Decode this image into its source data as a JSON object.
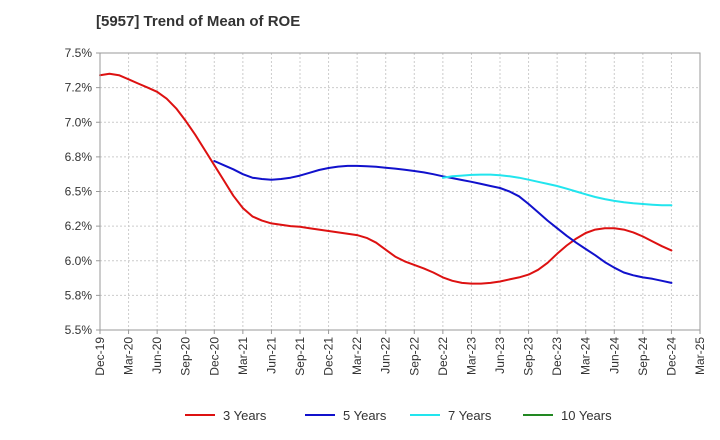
{
  "chart_data": {
    "type": "line",
    "title": "[5957]  Trend of Mean of ROE",
    "xlabel": "",
    "ylabel": "",
    "x_ticks": [
      "Dec-19",
      "Mar-20",
      "Jun-20",
      "Sep-20",
      "Dec-20",
      "Mar-21",
      "Jun-21",
      "Sep-21",
      "Dec-21",
      "Mar-22",
      "Jun-22",
      "Sep-22",
      "Dec-22",
      "Mar-23",
      "Jun-23",
      "Sep-23",
      "Dec-23",
      "Mar-24",
      "Jun-24",
      "Sep-24",
      "Dec-24",
      "Mar-25"
    ],
    "y_ticks": [
      "5.5%",
      "5.8%",
      "6.0%",
      "6.2%",
      "6.5%",
      "6.8%",
      "7.0%",
      "7.2%",
      "7.5%"
    ],
    "y_tick_values": [
      5.5,
      5.75,
      6.0,
      6.25,
      6.5,
      6.75,
      7.0,
      7.25,
      7.5
    ],
    "ylim": [
      5.5,
      7.5
    ],
    "grid": true,
    "legend_position": "bottom",
    "series": [
      {
        "name": "3 Years",
        "color": "#dd1111",
        "points": [
          [
            "Dec-19",
            7.34
          ],
          [
            "Jan-20",
            7.35
          ],
          [
            "Feb-20",
            7.34
          ],
          [
            "Mar-20",
            7.31
          ],
          [
            "Apr-20",
            7.28
          ],
          [
            "May-20",
            7.25
          ],
          [
            "Jun-20",
            7.22
          ],
          [
            "Jul-20",
            7.17
          ],
          [
            "Aug-20",
            7.1
          ],
          [
            "Sep-20",
            7.01
          ],
          [
            "Oct-20",
            6.91
          ],
          [
            "Nov-20",
            6.8
          ],
          [
            "Dec-20",
            6.69
          ],
          [
            "Jan-21",
            6.58
          ],
          [
            "Feb-21",
            6.47
          ],
          [
            "Mar-21",
            6.38
          ],
          [
            "Apr-21",
            6.32
          ],
          [
            "May-21",
            6.29
          ],
          [
            "Jun-21",
            6.27
          ],
          [
            "Jul-21",
            6.26
          ],
          [
            "Aug-21",
            6.25
          ],
          [
            "Sep-21",
            6.245
          ],
          [
            "Oct-21",
            6.235
          ],
          [
            "Nov-21",
            6.225
          ],
          [
            "Dec-21",
            6.215
          ],
          [
            "Jan-22",
            6.205
          ],
          [
            "Feb-22",
            6.195
          ],
          [
            "Mar-22",
            6.185
          ],
          [
            "Apr-22",
            6.165
          ],
          [
            "May-22",
            6.13
          ],
          [
            "Jun-22",
            6.08
          ],
          [
            "Jul-22",
            6.03
          ],
          [
            "Aug-22",
            5.995
          ],
          [
            "Sep-22",
            5.97
          ],
          [
            "Oct-22",
            5.945
          ],
          [
            "Nov-22",
            5.915
          ],
          [
            "Dec-22",
            5.88
          ],
          [
            "Jan-23",
            5.855
          ],
          [
            "Feb-23",
            5.84
          ],
          [
            "Mar-23",
            5.835
          ],
          [
            "Apr-23",
            5.835
          ],
          [
            "May-23",
            5.84
          ],
          [
            "Jun-23",
            5.85
          ],
          [
            "Jul-23",
            5.865
          ],
          [
            "Aug-23",
            5.88
          ],
          [
            "Sep-23",
            5.9
          ],
          [
            "Oct-23",
            5.935
          ],
          [
            "Nov-23",
            5.985
          ],
          [
            "Dec-23",
            6.05
          ],
          [
            "Jan-24",
            6.11
          ],
          [
            "Feb-24",
            6.16
          ],
          [
            "Mar-24",
            6.2
          ],
          [
            "Apr-24",
            6.225
          ],
          [
            "May-24",
            6.235
          ],
          [
            "Jun-24",
            6.235
          ],
          [
            "Jul-24",
            6.225
          ],
          [
            "Aug-24",
            6.205
          ],
          [
            "Sep-24",
            6.175
          ],
          [
            "Oct-24",
            6.14
          ],
          [
            "Nov-24",
            6.105
          ],
          [
            "Dec-24",
            6.075
          ]
        ]
      },
      {
        "name": "5 Years",
        "color": "#1111cc",
        "points": [
          [
            "Dec-20",
            6.72
          ],
          [
            "Jan-21",
            6.69
          ],
          [
            "Feb-21",
            6.66
          ],
          [
            "Mar-21",
            6.625
          ],
          [
            "Apr-21",
            6.6
          ],
          [
            "May-21",
            6.59
          ],
          [
            "Jun-21",
            6.585
          ],
          [
            "Jul-21",
            6.59
          ],
          [
            "Aug-21",
            6.6
          ],
          [
            "Sep-21",
            6.615
          ],
          [
            "Oct-21",
            6.635
          ],
          [
            "Nov-21",
            6.655
          ],
          [
            "Dec-21",
            6.67
          ],
          [
            "Jan-22",
            6.68
          ],
          [
            "Feb-22",
            6.685
          ],
          [
            "Mar-22",
            6.685
          ],
          [
            "Apr-22",
            6.683
          ],
          [
            "May-22",
            6.678
          ],
          [
            "Jun-22",
            6.672
          ],
          [
            "Jul-22",
            6.665
          ],
          [
            "Aug-22",
            6.657
          ],
          [
            "Sep-22",
            6.648
          ],
          [
            "Oct-22",
            6.638
          ],
          [
            "Nov-22",
            6.625
          ],
          [
            "Dec-22",
            6.61
          ],
          [
            "Jan-23",
            6.597
          ],
          [
            "Feb-23",
            6.583
          ],
          [
            "Mar-23",
            6.57
          ],
          [
            "Apr-23",
            6.555
          ],
          [
            "May-23",
            6.54
          ],
          [
            "Jun-23",
            6.525
          ],
          [
            "Jul-23",
            6.5
          ],
          [
            "Aug-23",
            6.465
          ],
          [
            "Sep-23",
            6.41
          ],
          [
            "Oct-23",
            6.35
          ],
          [
            "Nov-23",
            6.29
          ],
          [
            "Dec-23",
            6.235
          ],
          [
            "Jan-24",
            6.18
          ],
          [
            "Feb-24",
            6.13
          ],
          [
            "Mar-24",
            6.085
          ],
          [
            "Apr-24",
            6.04
          ],
          [
            "May-24",
            5.99
          ],
          [
            "Jun-24",
            5.95
          ],
          [
            "Jul-24",
            5.915
          ],
          [
            "Aug-24",
            5.895
          ],
          [
            "Sep-24",
            5.88
          ],
          [
            "Oct-24",
            5.87
          ],
          [
            "Nov-24",
            5.855
          ],
          [
            "Dec-24",
            5.84
          ]
        ]
      },
      {
        "name": "7 Years",
        "color": "#22e5ee",
        "points": [
          [
            "Dec-22",
            6.6
          ],
          [
            "Jan-23",
            6.61
          ],
          [
            "Feb-23",
            6.615
          ],
          [
            "Mar-23",
            6.62
          ],
          [
            "Apr-23",
            6.622
          ],
          [
            "May-23",
            6.622
          ],
          [
            "Jun-23",
            6.618
          ],
          [
            "Jul-23",
            6.61
          ],
          [
            "Aug-23",
            6.6
          ],
          [
            "Sep-23",
            6.585
          ],
          [
            "Oct-23",
            6.57
          ],
          [
            "Nov-23",
            6.555
          ],
          [
            "Dec-23",
            6.54
          ],
          [
            "Jan-24",
            6.52
          ],
          [
            "Feb-24",
            6.5
          ],
          [
            "Mar-24",
            6.48
          ],
          [
            "Apr-24",
            6.46
          ],
          [
            "May-24",
            6.445
          ],
          [
            "Jun-24",
            6.432
          ],
          [
            "Jul-24",
            6.422
          ],
          [
            "Aug-24",
            6.415
          ],
          [
            "Sep-24",
            6.41
          ],
          [
            "Oct-24",
            6.405
          ],
          [
            "Nov-24",
            6.4
          ],
          [
            "Dec-24",
            6.4
          ]
        ]
      },
      {
        "name": "10 Years",
        "color": "#228822",
        "points": []
      }
    ]
  }
}
